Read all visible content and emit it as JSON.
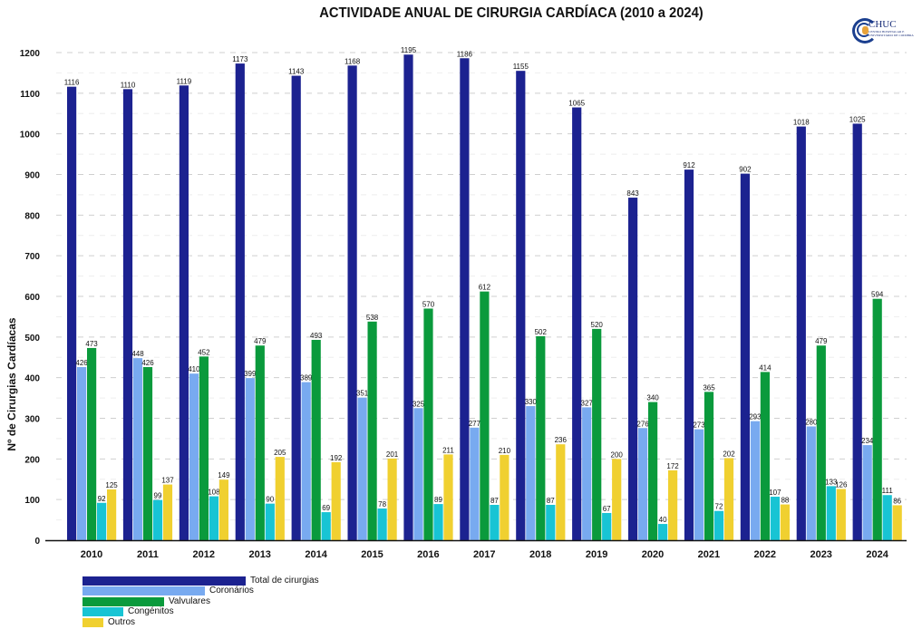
{
  "logo": {
    "name": "CHUC",
    "subtitle": "CENTRO HOSPITALAR E UNIVERSITÁRIO DE COIMBRA"
  },
  "chart_data": {
    "type": "bar",
    "title": "ACTIVIDADE ANUAL DE CIRURGIA CARDÍACA (2010 a 2024)",
    "xlabel": "",
    "ylabel": "Nº de Cirurgias Cardíacas",
    "ylim": [
      0,
      1200
    ],
    "yticks": [
      0,
      100,
      200,
      300,
      400,
      500,
      600,
      700,
      800,
      900,
      1000,
      1100,
      1200
    ],
    "grid": true,
    "legend_position": "bottom-left",
    "categories": [
      "2010",
      "2011",
      "2012",
      "2013",
      "2014",
      "2015",
      "2016",
      "2017",
      "2018",
      "2019",
      "2020",
      "2021",
      "2022",
      "2023",
      "2024"
    ],
    "series": [
      {
        "name": "Total de cirurgias",
        "color": "#1c2290",
        "values": [
          1116,
          1110,
          1119,
          1173,
          1143,
          1168,
          1195,
          1186,
          1155,
          1065,
          843,
          912,
          902,
          1018,
          1025
        ]
      },
      {
        "name": "Coronários",
        "color": "#78aaf0",
        "values": [
          426,
          448,
          410,
          399,
          389,
          351,
          325,
          277,
          330,
          327,
          276,
          273,
          293,
          280,
          234
        ]
      },
      {
        "name": "Valvulares",
        "color": "#0a9a3c",
        "values": [
          473,
          426,
          452,
          479,
          493,
          538,
          570,
          612,
          502,
          520,
          340,
          365,
          414,
          479,
          594
        ]
      },
      {
        "name": "Congénitos",
        "color": "#18c4d4",
        "values": [
          92,
          99,
          108,
          90,
          69,
          78,
          89,
          87,
          87,
          67,
          40,
          72,
          107,
          133,
          111
        ]
      },
      {
        "name": "Outros",
        "color": "#f0d030",
        "values": [
          125,
          137,
          149,
          205,
          192,
          201,
          211,
          210,
          236,
          200,
          172,
          202,
          88,
          126,
          86
        ]
      }
    ]
  }
}
